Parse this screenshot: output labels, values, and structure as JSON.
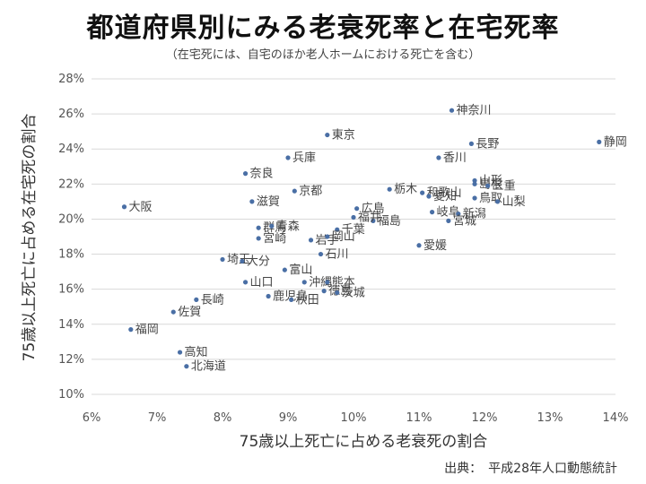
{
  "chart_data": {
    "type": "scatter",
    "title": "都道府県別にみる老衰死率と在宅死率",
    "subtitle": "（在宅死には、自宅のほか老人ホームにおける死亡を含む）",
    "xlabel": "75歳以上死亡に占める老衰死の割合",
    "ylabel": "75歳以上死亡に占める在宅死の割合",
    "source": "出典：　平成28年人口動態統計",
    "xlim": [
      6,
      14
    ],
    "ylim": [
      10,
      28
    ],
    "x_ticks": [
      "6%",
      "7%",
      "8%",
      "9%",
      "10%",
      "11%",
      "12%",
      "13%",
      "14%"
    ],
    "y_ticks": [
      "10%",
      "12%",
      "14%",
      "16%",
      "18%",
      "20%",
      "22%",
      "24%",
      "26%",
      "28%"
    ],
    "grid": "horizontal",
    "point_color": "#4a6fa5",
    "points": [
      {
        "name": "神奈川",
        "x": 11.5,
        "y": 26.2
      },
      {
        "name": "東京",
        "x": 9.6,
        "y": 24.8
      },
      {
        "name": "長野",
        "x": 11.8,
        "y": 24.3
      },
      {
        "name": "静岡",
        "x": 13.75,
        "y": 24.4
      },
      {
        "name": "兵庫",
        "x": 9.0,
        "y": 23.5
      },
      {
        "name": "香川",
        "x": 11.3,
        "y": 23.5
      },
      {
        "name": "奈良",
        "x": 8.35,
        "y": 22.6
      },
      {
        "name": "栃木",
        "x": 10.55,
        "y": 21.7
      },
      {
        "name": "和歌山",
        "x": 11.05,
        "y": 21.5
      },
      {
        "name": "島根",
        "x": 11.85,
        "y": 22.0
      },
      {
        "name": "山形",
        "x": 11.85,
        "y": 22.2
      },
      {
        "name": "三重",
        "x": 12.05,
        "y": 21.9
      },
      {
        "name": "京都",
        "x": 9.1,
        "y": 21.6
      },
      {
        "name": "愛知",
        "x": 11.15,
        "y": 21.3
      },
      {
        "name": "鳥取",
        "x": 11.85,
        "y": 21.2
      },
      {
        "name": "山梨",
        "x": 12.2,
        "y": 21.0
      },
      {
        "name": "大阪",
        "x": 6.5,
        "y": 20.7
      },
      {
        "name": "滋賀",
        "x": 8.45,
        "y": 21.0
      },
      {
        "name": "広島",
        "x": 10.05,
        "y": 20.6
      },
      {
        "name": "岐阜",
        "x": 11.2,
        "y": 20.4
      },
      {
        "name": "新潟",
        "x": 11.6,
        "y": 20.3
      },
      {
        "name": "福島",
        "x": 10.3,
        "y": 19.9
      },
      {
        "name": "福井",
        "x": 10.0,
        "y": 20.1
      },
      {
        "name": "群馬",
        "x": 8.55,
        "y": 19.5
      },
      {
        "name": "青森",
        "x": 8.75,
        "y": 19.6
      },
      {
        "name": "千葉",
        "x": 9.75,
        "y": 19.4
      },
      {
        "name": "宮城",
        "x": 11.45,
        "y": 19.9
      },
      {
        "name": "宮崎",
        "x": 8.55,
        "y": 18.9
      },
      {
        "name": "岩手",
        "x": 9.35,
        "y": 18.8
      },
      {
        "name": "岡山",
        "x": 9.6,
        "y": 19.0
      },
      {
        "name": "愛媛",
        "x": 11.0,
        "y": 18.5
      },
      {
        "name": "埼玉",
        "x": 8.0,
        "y": 17.7
      },
      {
        "name": "石川",
        "x": 9.5,
        "y": 18.0
      },
      {
        "name": "大分",
        "x": 8.3,
        "y": 17.6
      },
      {
        "name": "富山",
        "x": 8.95,
        "y": 17.1
      },
      {
        "name": "沖縄",
        "x": 9.25,
        "y": 16.4
      },
      {
        "name": "熊本",
        "x": 9.6,
        "y": 16.4
      },
      {
        "name": "長崎",
        "x": 7.6,
        "y": 15.4
      },
      {
        "name": "山口",
        "x": 8.35,
        "y": 16.4
      },
      {
        "name": "徳島",
        "x": 9.55,
        "y": 15.9
      },
      {
        "name": "茨城",
        "x": 9.75,
        "y": 15.8
      },
      {
        "name": "鹿児島",
        "x": 8.7,
        "y": 15.6
      },
      {
        "name": "秋田",
        "x": 9.05,
        "y": 15.4
      },
      {
        "name": "佐賀",
        "x": 7.25,
        "y": 14.7
      },
      {
        "name": "福岡",
        "x": 6.6,
        "y": 13.7
      },
      {
        "name": "高知",
        "x": 7.35,
        "y": 12.4
      },
      {
        "name": "北海道",
        "x": 7.45,
        "y": 11.6
      }
    ]
  }
}
